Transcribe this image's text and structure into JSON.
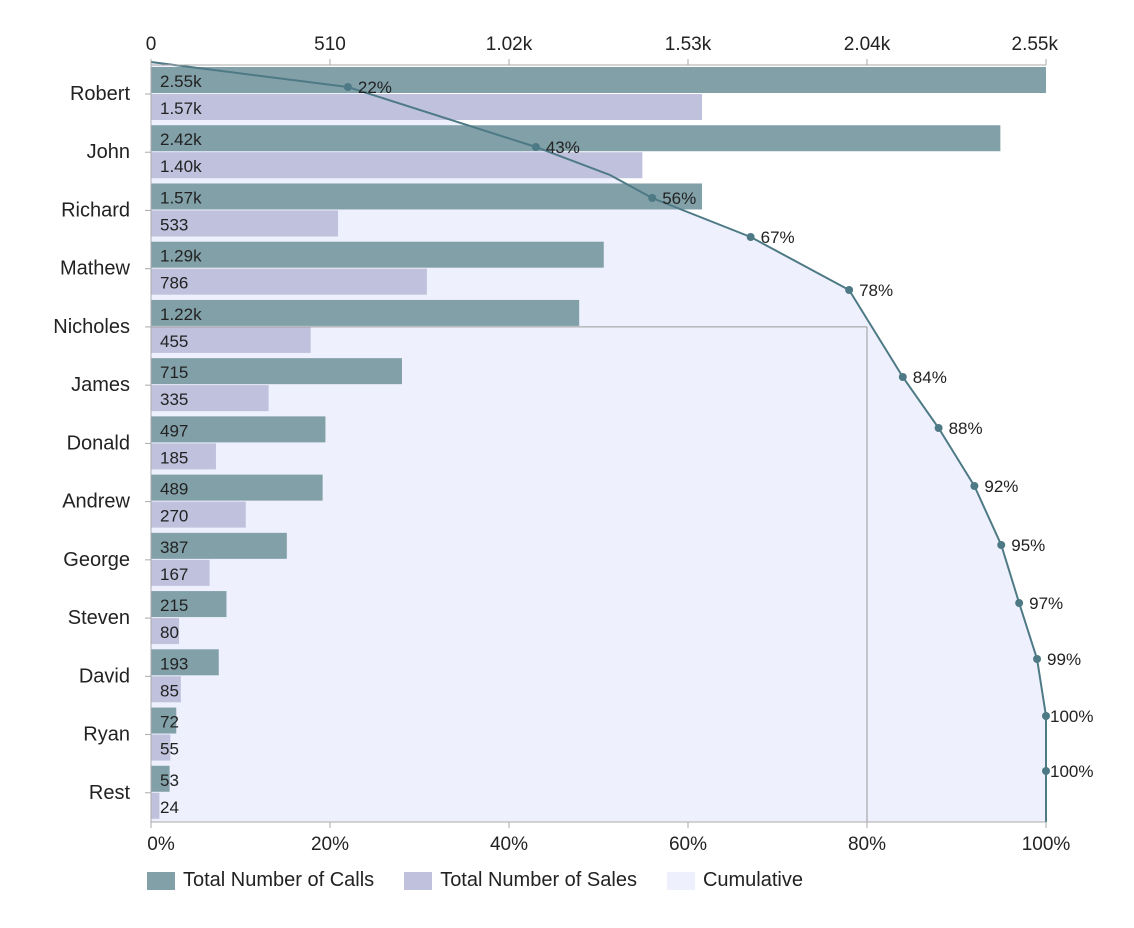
{
  "chart_data": {
    "type": "bar",
    "orientation": "horizontal",
    "categories": [
      "Robert",
      "John",
      "Richard",
      "Mathew",
      "Nicholes",
      "James",
      "Donald",
      "Andrew",
      "George",
      "Steven",
      "David",
      "Ryan",
      "Rest"
    ],
    "series": [
      {
        "name": "Total Number of Calls",
        "color": "#82a0a8",
        "values": [
          2550,
          2420,
          1570,
          1290,
          1220,
          715,
          497,
          489,
          387,
          215,
          193,
          72,
          53
        ],
        "labels": [
          "2.55k",
          "2.42k",
          "1.57k",
          "1.29k",
          "1.22k",
          "715",
          "497",
          "489",
          "387",
          "215",
          "193",
          "72",
          "53"
        ]
      },
      {
        "name": "Total Number of Sales",
        "color": "#bfc1dd",
        "values": [
          1570,
          1400,
          533,
          786,
          455,
          335,
          185,
          270,
          167,
          80,
          85,
          55,
          24
        ],
        "labels": [
          "1.57k",
          "1.40k",
          "533",
          "786",
          "455",
          "335",
          "185",
          "270",
          "167",
          "80",
          "85",
          "55",
          "24"
        ]
      },
      {
        "name": "Cumulative",
        "type": "area",
        "color": "#eef1fd",
        "line_color": "#4e7a86",
        "values": [
          22,
          43,
          56,
          67,
          78,
          84,
          88,
          92,
          95,
          97,
          99,
          100,
          100
        ],
        "labels": [
          "22%",
          "43%",
          "56%",
          "67%",
          "78%",
          "84%",
          "88%",
          "92%",
          "95%",
          "97%",
          "99%",
          "100%",
          "100%"
        ]
      }
    ],
    "top_axis": {
      "range": [
        0,
        2550
      ],
      "ticks": [
        0,
        510,
        1020,
        1530,
        2040,
        2550
      ],
      "tick_labels": [
        "0",
        "510",
        "1.02k",
        "1.53k",
        "2.04k",
        "2.55k"
      ]
    },
    "bottom_axis": {
      "range": [
        0,
        100
      ],
      "ticks": [
        0,
        20,
        40,
        60,
        80,
        100
      ],
      "tick_labels": [
        "0%",
        "20%",
        "40%",
        "60%",
        "80%",
        "100%"
      ]
    },
    "crosshair": {
      "x_percent": 80,
      "category": "Nicholes"
    },
    "legend": {
      "position": "bottom-left",
      "entries": [
        "Total Number of Calls",
        "Total Number of Sales",
        "Cumulative"
      ]
    },
    "grid": false
  }
}
